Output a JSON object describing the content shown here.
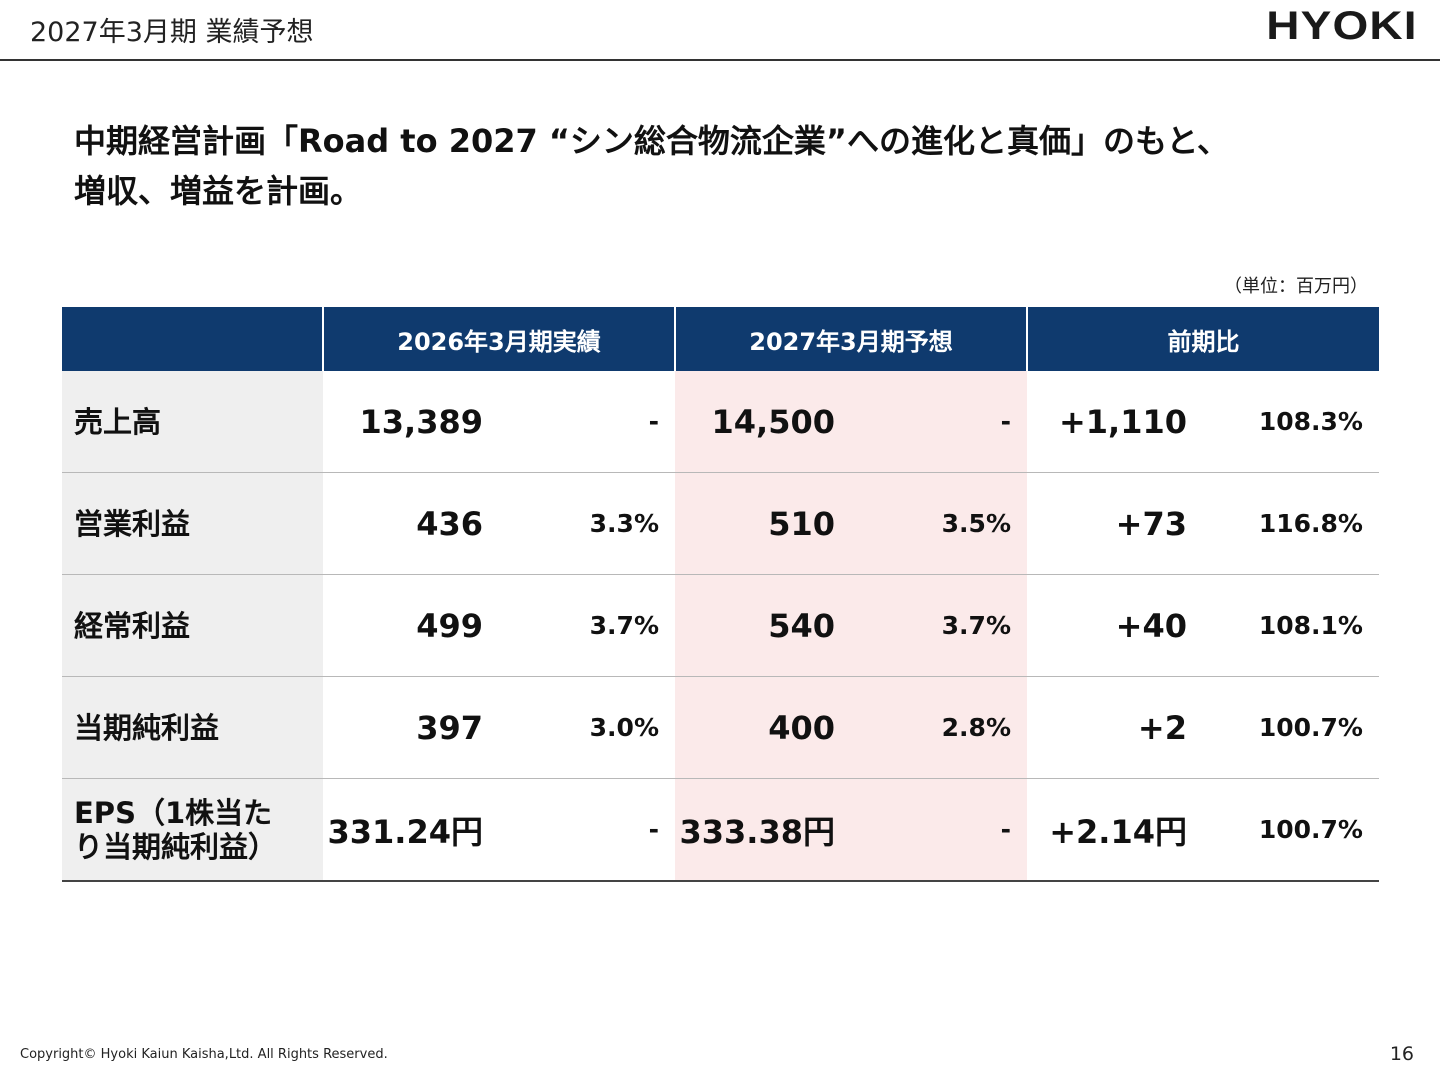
{
  "header": {
    "title": "2027年3月期 業績予想",
    "logo_text": "HYOKI"
  },
  "headline": {
    "line1": "中期経営計画「Road to 2027 “シン総合物流企業”への進化と真価」のもと、",
    "line2": "増収、増益を計画。"
  },
  "unit_note": "（単位：百万円）",
  "table": {
    "columns": {
      "actual": "2026年3月期実績",
      "forecast": "2027年3月期予想",
      "yoy": "前期比"
    },
    "rows": [
      {
        "label": "売上高",
        "actual": "13,389",
        "actual_margin": "-",
        "forecast": "14,500",
        "forecast_margin": "-",
        "diff": "+1,110",
        "ratio": "108.3%"
      },
      {
        "label": "営業利益",
        "actual": "436",
        "actual_margin": "3.3%",
        "forecast": "510",
        "forecast_margin": "3.5%",
        "diff": "+73",
        "ratio": "116.8%"
      },
      {
        "label": "経常利益",
        "actual": "499",
        "actual_margin": "3.7%",
        "forecast": "540",
        "forecast_margin": "3.7%",
        "diff": "+40",
        "ratio": "108.1%"
      },
      {
        "label": "当期純利益",
        "actual": "397",
        "actual_margin": "3.0%",
        "forecast": "400",
        "forecast_margin": "2.8%",
        "diff": "+2",
        "ratio": "100.7%"
      },
      {
        "label_line1": "EPS（1株当た",
        "label_line2": "り当期純利益）",
        "actual": "331.24円",
        "actual_margin": "-",
        "forecast": "333.38円",
        "forecast_margin": "-",
        "diff": "+2.14円",
        "ratio": "100.7%"
      }
    ]
  },
  "footer": {
    "copyright": "Copyright© Hyoki Kaiun Kaisha,Ltd. All Rights Reserved.",
    "page_number": "16"
  },
  "colors": {
    "header_fill": "#0f3a6e",
    "label_fill": "#efefef",
    "forecast_fill": "#fbeaea"
  }
}
